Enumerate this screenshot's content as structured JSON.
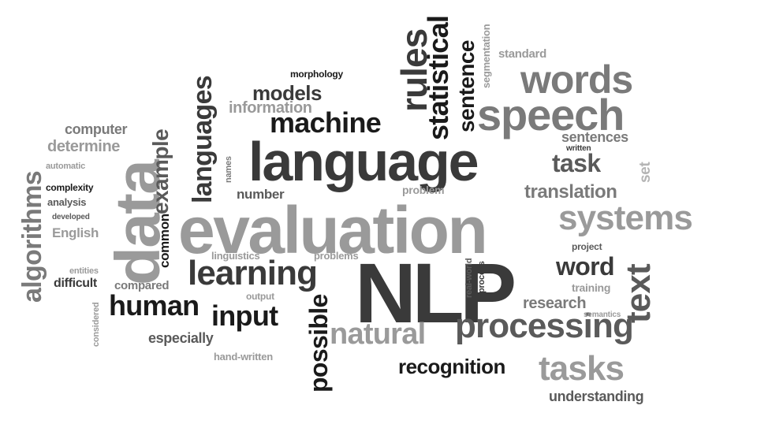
{
  "words": {
    "nlp": "NLP",
    "evaluation": "evaluation",
    "language": "language",
    "speech": "speech",
    "words": "words",
    "systems": "systems",
    "data": "data",
    "learning": "learning",
    "processing": "processing",
    "tasks": "tasks",
    "natural": "natural",
    "machine": "machine",
    "human": "human",
    "input": "input",
    "text": "text",
    "rules": "rules",
    "statistical": "statistical",
    "sentence": "sentence",
    "languages_v": "languages",
    "languages_h": "languages",
    "algorithms": "algorithms",
    "example": "example",
    "task": "task",
    "word": "word",
    "models": "models",
    "information": "information",
    "morphology": "morphology",
    "computer": "computer",
    "determine": "determine",
    "automatic": "automatic",
    "complexity": "complexity",
    "analysis": "analysis",
    "developed": "developed",
    "english": "English",
    "entities": "entities",
    "difficult": "difficult",
    "considered": "considered",
    "common": "common",
    "compared": "compared",
    "names": "names",
    "number": "number",
    "linguistics": "linguistics",
    "output": "output",
    "especially": "especially",
    "hand_written": "hand-written",
    "problems": "problems",
    "possible": "possible",
    "real_world": "real-world",
    "process": "process",
    "recognition": "recognition",
    "understanding": "understanding",
    "research": "research",
    "semantics": "semantics",
    "training": "training",
    "project": "project",
    "translation": "translation",
    "problem": "problem",
    "sentences": "sentences",
    "written": "written",
    "set": "set",
    "standard": "standard",
    "segmentation": "segmentation"
  }
}
